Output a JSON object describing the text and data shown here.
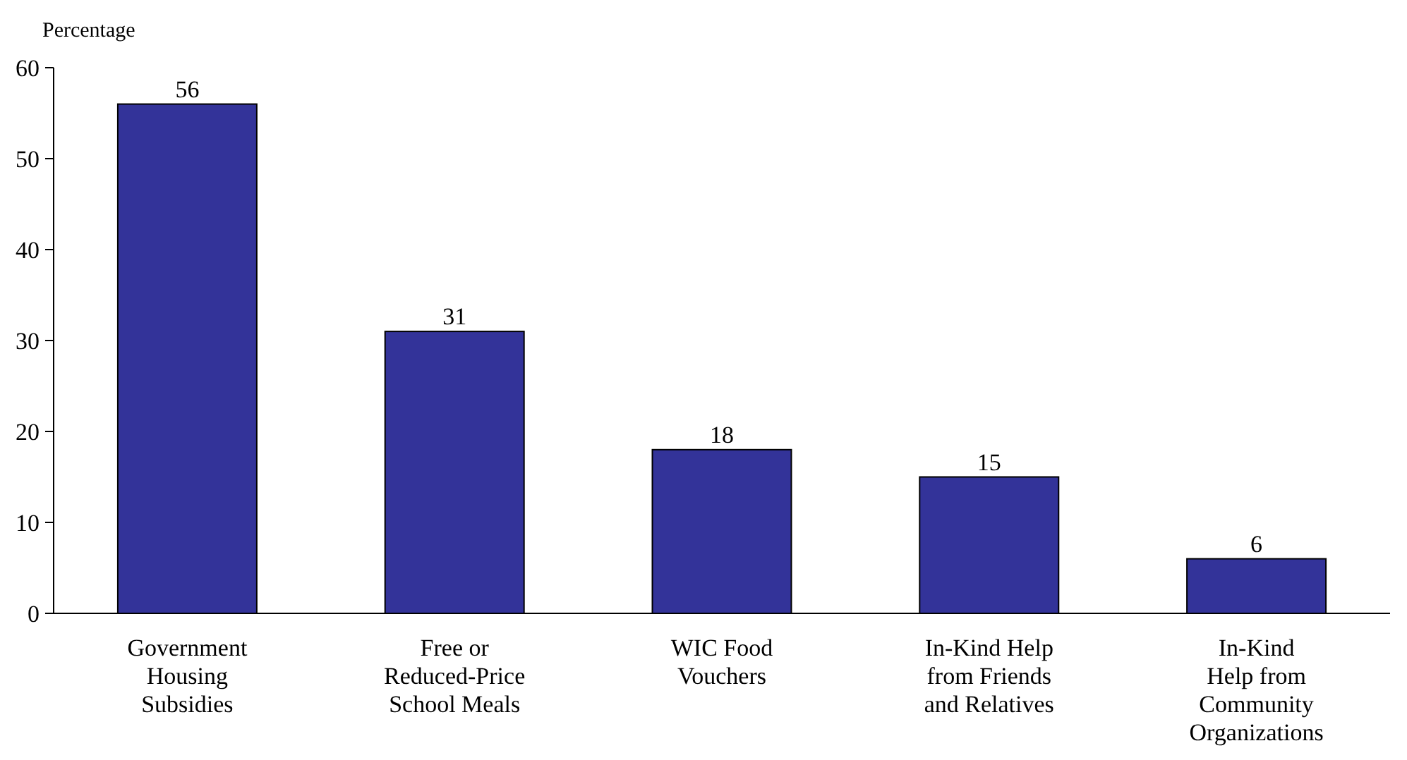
{
  "chart_data": {
    "type": "bar",
    "ylabel": "Percentage",
    "categories": [
      "Government\nHousing\nSubsidies",
      "Free or\nReduced-Price\nSchool Meals",
      "WIC Food\nVouchers",
      "In-Kind Help\nfrom Friends\nand Relatives",
      "In-Kind\nHelp from\nCommunity\nOrganizations"
    ],
    "values": [
      56,
      31,
      18,
      15,
      6
    ],
    "color": "#333399",
    "ylim": [
      0,
      60
    ],
    "yticks": [
      0,
      10,
      20,
      30,
      40,
      50,
      60
    ],
    "data_labels": true,
    "grid": false
  }
}
